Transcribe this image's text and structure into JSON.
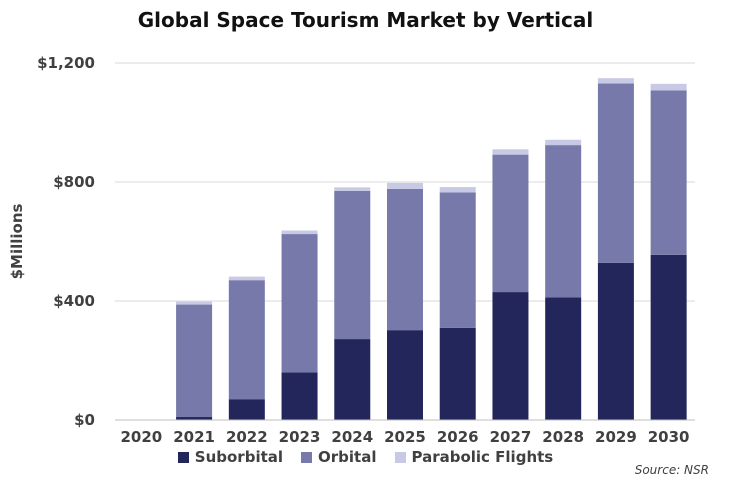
{
  "chart_data": {
    "type": "bar",
    "stacked": true,
    "title": "Global Space Tourism Market by Vertical",
    "ylabel": "$Millions",
    "xlabel": "",
    "categories": [
      "2020",
      "2021",
      "2022",
      "2023",
      "2024",
      "2025",
      "2026",
      "2027",
      "2028",
      "2029",
      "2030"
    ],
    "series": [
      {
        "name": "Suborbital",
        "color": "#23265a",
        "values": [
          0,
          10,
          70,
          160,
          272,
          302,
          310,
          430,
          412,
          528,
          555
        ]
      },
      {
        "name": "Orbital",
        "color": "#7679a9",
        "values": [
          0,
          378,
          400,
          465,
          498,
          475,
          455,
          462,
          512,
          603,
          553
        ]
      },
      {
        "name": "Parabolic Flights",
        "color": "#c8c9e4",
        "values": [
          0,
          10,
          12,
          12,
          12,
          20,
          18,
          18,
          18,
          18,
          22
        ]
      }
    ],
    "ylim": [
      0,
      1200
    ],
    "yticks": [
      0,
      400,
      800,
      1200
    ],
    "ytick_labels": [
      "$0",
      "$400",
      "$800",
      "$1,200"
    ],
    "grid": true,
    "legend_position": "bottom",
    "source_note": "Source: NSR"
  }
}
